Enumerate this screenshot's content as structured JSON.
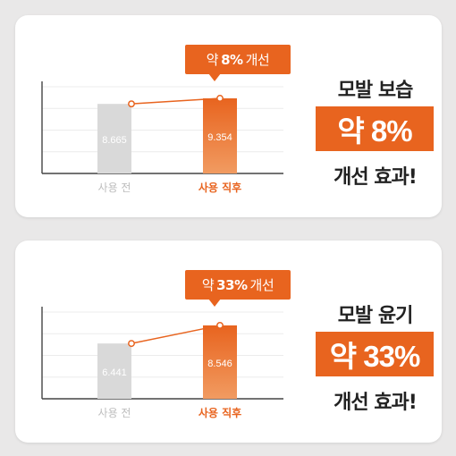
{
  "colors": {
    "accent": "#e8641f",
    "before_bar": "#d9d9d9",
    "text_dark": "#222222"
  },
  "chart_data": [
    {
      "type": "bar",
      "categories": [
        "사용 전",
        "사용 직후"
      ],
      "values": [
        8.665,
        9.354
      ],
      "value_labels": [
        "8.665",
        "9.354"
      ],
      "ylim": [
        0,
        10.8
      ],
      "grid": true,
      "callout": {
        "prefix": "약",
        "value": "8%",
        "suffix": "개선"
      },
      "summary": {
        "line1": "모발 보습",
        "highlight": "약 8%",
        "line3": "개선 효과!"
      }
    },
    {
      "type": "bar",
      "categories": [
        "사용 전",
        "사용 직후"
      ],
      "values": [
        6.441,
        8.546
      ],
      "value_labels": [
        "6.441",
        "8.546"
      ],
      "ylim": [
        0,
        10.1
      ],
      "grid": true,
      "callout": {
        "prefix": "약",
        "value": "33%",
        "suffix": "개선"
      },
      "summary": {
        "line1": "모발 윤기",
        "highlight": "약 33%",
        "line3": "개선 효과!"
      }
    }
  ]
}
